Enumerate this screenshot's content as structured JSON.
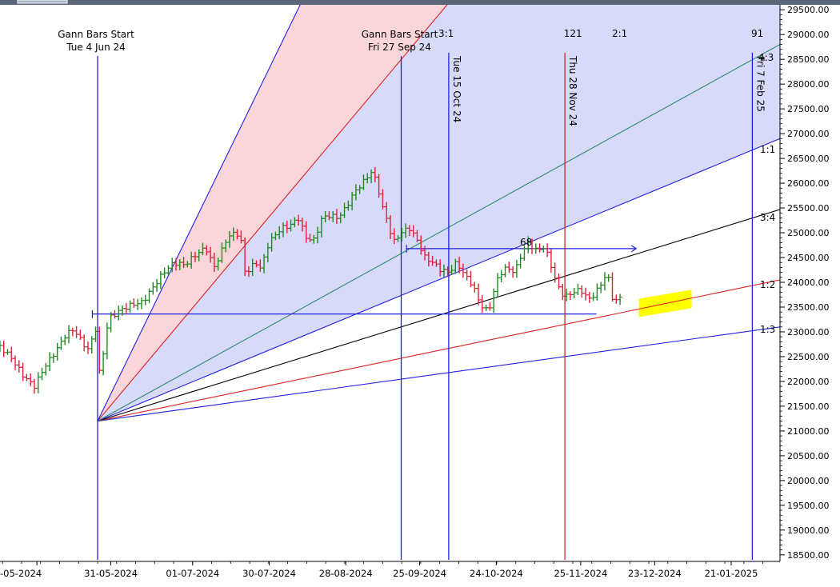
{
  "chart_data": {
    "type": "bar",
    "subtype": "ohlc-with-gann-fan",
    "y_axis": {
      "position": "right",
      "ylim": [
        18400,
        29600
      ],
      "ticks": [
        "29500.00",
        "29000.00",
        "28500.00",
        "28000.00",
        "27500.00",
        "27000.00",
        "26500.00",
        "26000.00",
        "25500.00",
        "25000.00",
        "24500.00",
        "24000.00",
        "23500.00",
        "23000.00",
        "22500.00",
        "22000.00",
        "21500.00",
        "21000.00",
        "20500.00",
        "20000.00",
        "19500.00",
        "19000.00",
        "18500.00"
      ]
    },
    "x_axis": {
      "ticks": [
        {
          "label": "-05-2024",
          "day": -23
        },
        {
          "label": "31-05-2024",
          "day": 5
        },
        {
          "label": "01-07-2024",
          "day": 36
        },
        {
          "label": "30-07-2024",
          "day": 65
        },
        {
          "label": "28-08-2024",
          "day": 94
        },
        {
          "label": "25-09-2024",
          "day": 122
        },
        {
          "label": "24-10-2024",
          "day": 151
        },
        {
          "label": "25-11-2024",
          "day": 183
        },
        {
          "label": "23-12-2024",
          "day": 211
        },
        {
          "label": "21-01-2025",
          "day": 240
        }
      ]
    },
    "gann_fan": {
      "origin": {
        "day": 0,
        "price": 21200
      },
      "lines": [
        {
          "label": "1:3",
          "end_price": 23100,
          "color": "#2020e0"
        },
        {
          "label": "1:2",
          "end_price": 24050,
          "color": "#e02020"
        },
        {
          "label": "3:4",
          "end_price": 25470,
          "color": "#000000"
        },
        {
          "label": "1:1",
          "end_price": 26900,
          "color": "#2020e0"
        },
        {
          "label": "4:3",
          "end_price": 28800,
          "color": "#2a8a6a"
        },
        {
          "label": "2:1",
          "end_price": 37600,
          "color": "#e02020"
        },
        {
          "label": "3:1",
          "end_price": 49500,
          "color": "#2020e0"
        }
      ],
      "labels_shown": [
        "1:3",
        "1:2",
        "3:4",
        "1:1",
        "4:3",
        "2:1",
        "3:1"
      ]
    },
    "vertical_lines": [
      {
        "day": 0,
        "label": "Gann Bars Start",
        "sublabel": "Tue 4 Jun 24",
        "color": "#2020e0"
      },
      {
        "day": 115,
        "label": "Gann Bars Start",
        "sublabel": "Fri 27 Sep 24",
        "color": "#2020e0"
      },
      {
        "day": 133,
        "label": "Tue 15 Oct 24",
        "color": "#2020e0"
      },
      {
        "day": 177,
        "label": "Thu 28 Nov 24",
        "color": "#e02020"
      },
      {
        "day": 248,
        "label": "Fri 7 Feb 25",
        "color": "#2020e0"
      }
    ],
    "cycle_counts": [
      {
        "label": "121",
        "day": 179
      },
      {
        "label": "91",
        "day": 250
      }
    ],
    "horizontal_lines": [
      {
        "price": 23360,
        "from_day": -2,
        "to_day": 189,
        "color": "#2020e0"
      },
      {
        "price": 24680,
        "from_day": 117,
        "to_day": 204,
        "color": "#2020e0",
        "label": "68"
      }
    ],
    "highlight_zone": {
      "from_day": 205,
      "to_day": 225,
      "price_low": 23300,
      "price_high": 23850,
      "color": "#ffff00"
    },
    "ohlc_path": [
      [
        -37,
        22700
      ],
      [
        -33,
        22500
      ],
      [
        -28,
        22100
      ],
      [
        -24,
        21900
      ],
      [
        -20,
        22300
      ],
      [
        -16,
        22600
      ],
      [
        -12,
        22950
      ],
      [
        -9,
        23050
      ],
      [
        -6,
        22800
      ],
      [
        -3,
        22600
      ],
      [
        -1,
        23200
      ],
      [
        1,
        22000
      ],
      [
        3,
        23000
      ],
      [
        5,
        23300
      ],
      [
        9,
        23450
      ],
      [
        13,
        23550
      ],
      [
        17,
        23600
      ],
      [
        21,
        23900
      ],
      [
        25,
        24200
      ],
      [
        29,
        24400
      ],
      [
        33,
        24350
      ],
      [
        37,
        24550
      ],
      [
        41,
        24700
      ],
      [
        44,
        24300
      ],
      [
        46,
        24500
      ],
      [
        49,
        24900
      ],
      [
        52,
        25000
      ],
      [
        54,
        24950
      ],
      [
        56,
        24150
      ],
      [
        58,
        24300
      ],
      [
        60,
        24400
      ],
      [
        62,
        24250
      ],
      [
        64,
        24700
      ],
      [
        67,
        24950
      ],
      [
        70,
        25100
      ],
      [
        73,
        25150
      ],
      [
        76,
        25300
      ],
      [
        79,
        24900
      ],
      [
        82,
        24850
      ],
      [
        85,
        25300
      ],
      [
        88,
        25350
      ],
      [
        91,
        25300
      ],
      [
        94,
        25500
      ],
      [
        97,
        25800
      ],
      [
        101,
        26050
      ],
      [
        104,
        26250
      ],
      [
        106,
        25950
      ],
      [
        108,
        25500
      ],
      [
        110,
        25200
      ],
      [
        112,
        24800
      ],
      [
        115,
        25000
      ],
      [
        118,
        25100
      ],
      [
        121,
        24850
      ],
      [
        124,
        24500
      ],
      [
        127,
        24400
      ],
      [
        130,
        24250
      ],
      [
        133,
        24200
      ],
      [
        136,
        24400
      ],
      [
        139,
        24150
      ],
      [
        142,
        23950
      ],
      [
        145,
        23550
      ],
      [
        148,
        23400
      ],
      [
        150,
        23800
      ],
      [
        152,
        24150
      ],
      [
        155,
        24300
      ],
      [
        158,
        24200
      ],
      [
        160,
        24500
      ],
      [
        163,
        24800
      ],
      [
        166,
        24650
      ],
      [
        169,
        24700
      ],
      [
        171,
        24500
      ],
      [
        173,
        24100
      ],
      [
        175,
        23850
      ],
      [
        177,
        23700
      ],
      [
        180,
        23800
      ],
      [
        183,
        23850
      ],
      [
        186,
        23650
      ],
      [
        188,
        23750
      ],
      [
        190,
        23900
      ],
      [
        193,
        24200
      ],
      [
        195,
        23700
      ],
      [
        197,
        23600
      ],
      [
        199,
        23800
      ]
    ]
  }
}
